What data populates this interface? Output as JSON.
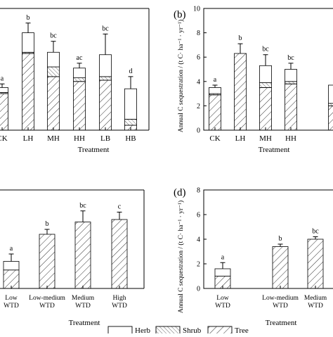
{
  "chart_data": [
    {
      "panel": "a",
      "type": "bar",
      "stacked": true,
      "xlabel": "Treatment",
      "categories": [
        "CK",
        "LH",
        "MH",
        "HH",
        "LB",
        "HB"
      ],
      "letters": [
        "a",
        "b",
        "bc",
        "ac",
        "bc",
        "d"
      ],
      "series": [
        {
          "name": "Tree",
          "values": [
            3.0,
            6.3,
            4.4,
            4.0,
            4.1,
            0.4
          ]
        },
        {
          "name": "Shrub",
          "values": [
            0.1,
            0.1,
            0.8,
            0.3,
            0.3,
            0.5
          ]
        },
        {
          "name": "Herb",
          "values": [
            0.4,
            1.6,
            1.2,
            0.8,
            1.8,
            2.5
          ]
        }
      ],
      "errors": [
        0.3,
        0.8,
        0.9,
        0.4,
        1.7,
        1.0
      ],
      "ylim": [
        0,
        10
      ]
    },
    {
      "panel": "b",
      "type": "bar",
      "stacked": true,
      "panel_label": "(b)",
      "ylabel": "Annual C sequestration / (t C· ha⁻¹ · yr⁻¹)",
      "xlabel": "Treatment",
      "categories": [
        "CK",
        "LH",
        "MH",
        "HH",
        ""
      ],
      "letters": [
        "a",
        "b",
        "bc",
        "bc",
        ""
      ],
      "series": [
        {
          "name": "Tree",
          "values": [
            2.9,
            6.3,
            3.5,
            3.8,
            2.0
          ]
        },
        {
          "name": "Shrub",
          "values": [
            0.1,
            0.0,
            0.4,
            0.2,
            0.2
          ]
        },
        {
          "name": "Herb",
          "values": [
            0.5,
            0.0,
            1.4,
            1.0,
            1.5
          ]
        }
      ],
      "errors": [
        0.2,
        0.8,
        0.9,
        0.5,
        0.0
      ],
      "ylim": [
        0,
        10
      ],
      "yticks": [
        0,
        2,
        4,
        6,
        8,
        10
      ]
    },
    {
      "panel": "c",
      "type": "bar",
      "stacked": true,
      "xlabel": "Treatment",
      "categories": [
        "Low\nWTD",
        "Low-medium\nWTD",
        "Medium\nWTD",
        "High\nWTD"
      ],
      "letters": [
        "a",
        "b",
        "bc",
        "c"
      ],
      "series": [
        {
          "name": "Tree",
          "values": [
            1.5,
            4.4,
            5.4,
            5.6
          ]
        },
        {
          "name": "Herb",
          "values": [
            0.7,
            0.0,
            0.0,
            0.0
          ]
        }
      ],
      "errors": [
        0.6,
        0.4,
        0.9,
        0.6
      ],
      "ylim": [
        0,
        8
      ]
    },
    {
      "panel": "d",
      "type": "bar",
      "stacked": true,
      "panel_label": "(d)",
      "ylabel": "Annual C sequestration / (t C· ha⁻¹ · yr⁻¹)",
      "xlabel": "Treatment",
      "categories": [
        "Low\nWTD",
        "Low-medium\nWTD",
        "Medium\nWTD",
        ""
      ],
      "letters": [
        "a",
        "b",
        "bc",
        ""
      ],
      "series": [
        {
          "name": "Tree",
          "values": [
            1.0,
            3.4,
            4.0,
            0.0
          ]
        },
        {
          "name": "Herb",
          "values": [
            0.6,
            0.0,
            0.0,
            0.0
          ]
        }
      ],
      "errors": [
        0.5,
        0.2,
        0.2,
        0.0
      ],
      "ylim": [
        0,
        8
      ],
      "yticks": [
        0,
        2,
        4,
        6,
        8
      ]
    }
  ],
  "legend": {
    "items": [
      {
        "label": "Herb",
        "pattern": "plain"
      },
      {
        "label": "Shrub",
        "pattern": "hatch-back"
      },
      {
        "label": "Tree",
        "pattern": "hatch-fwd"
      }
    ]
  }
}
